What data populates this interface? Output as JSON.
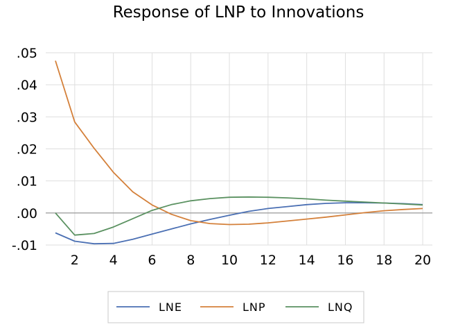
{
  "chart_data": {
    "type": "line",
    "title": "Response of LNP to Innovations",
    "xlabel": "",
    "ylabel": "",
    "xlim": [
      0.5,
      20.5
    ],
    "ylim": [
      -0.01,
      0.05
    ],
    "x_ticks": [
      2,
      4,
      6,
      8,
      10,
      12,
      14,
      16,
      18,
      20
    ],
    "x_tick_labels": [
      "2",
      "4",
      "6",
      "8",
      "10",
      "12",
      "14",
      "16",
      "18",
      "20"
    ],
    "y_ticks": [
      -0.01,
      0.0,
      0.01,
      0.02,
      0.03,
      0.04,
      0.05
    ],
    "y_tick_labels": [
      "-.01",
      ".00",
      ".01",
      ".02",
      ".03",
      ".04",
      ".05"
    ],
    "grid": true,
    "legend_position": "bottom-center",
    "x": [
      1,
      2,
      3,
      4,
      5,
      6,
      7,
      8,
      9,
      10,
      11,
      12,
      13,
      14,
      15,
      16,
      17,
      18,
      19,
      20
    ],
    "series": [
      {
        "name": "LNE",
        "color": "#4a6fb3",
        "values": [
          -0.0062,
          -0.0088,
          -0.0096,
          -0.0095,
          -0.0082,
          -0.0066,
          -0.005,
          -0.0034,
          -0.002,
          -0.0007,
          0.0005,
          0.0014,
          0.002,
          0.0026,
          0.003,
          0.0032,
          0.0032,
          0.0031,
          0.0029,
          0.0026
        ]
      },
      {
        "name": "LNP",
        "color": "#d4803a",
        "values": [
          0.0475,
          0.0284,
          0.0202,
          0.0127,
          0.0066,
          0.0025,
          -0.0004,
          -0.0024,
          -0.0033,
          -0.0036,
          -0.0035,
          -0.0031,
          -0.0025,
          -0.0019,
          -0.0013,
          -0.0006,
          0.0001,
          0.0007,
          0.0011,
          0.0014
        ]
      },
      {
        "name": "LNQ",
        "color": "#5a9160",
        "values": [
          0.0,
          -0.0069,
          -0.0064,
          -0.0044,
          -0.0018,
          0.0008,
          0.0026,
          0.0038,
          0.0045,
          0.0049,
          0.005,
          0.0049,
          0.0047,
          0.0044,
          0.004,
          0.0037,
          0.0034,
          0.0031,
          0.0028,
          0.0025
        ]
      }
    ]
  }
}
